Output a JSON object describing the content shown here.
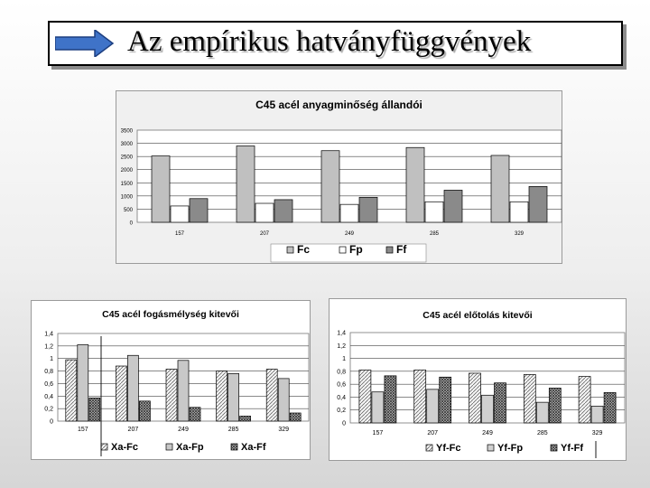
{
  "slide": {
    "title": "Az empírikus hatványfüggvények"
  },
  "chart_data": [
    {
      "type": "bar",
      "title": "C45 acél anyagminőség állandói",
      "categories": [
        "157",
        "207",
        "249",
        "285",
        "329"
      ],
      "ylim": [
        0,
        3500
      ],
      "yticks": [
        "0",
        "500",
        "1000",
        "1500",
        "2000",
        "2500",
        "3000",
        "3500"
      ],
      "grid": true,
      "legend_position": "bottom",
      "series": [
        {
          "name": "Fc",
          "values": [
            2520,
            2900,
            2720,
            2840,
            2540
          ],
          "fill": "#c0c0c0"
        },
        {
          "name": "Fp",
          "values": [
            620,
            720,
            680,
            780,
            780
          ],
          "fill": "#ffffff"
        },
        {
          "name": "Ff",
          "values": [
            900,
            860,
            950,
            1220,
            1360
          ],
          "fill": "#8a8a8a"
        }
      ]
    },
    {
      "type": "bar",
      "title": "C45 acél fogásmélység kitevői",
      "categories": [
        "157",
        "207",
        "249",
        "285",
        "329"
      ],
      "ylim": [
        0,
        1.4
      ],
      "yticks": [
        "0",
        "0,2",
        "0,4",
        "0,6",
        "0,8",
        "1",
        "1,2",
        "1,4"
      ],
      "grid": true,
      "legend_position": "bottom",
      "series": [
        {
          "name": "Xa-Fc",
          "values": [
            0.98,
            0.88,
            0.83,
            0.8,
            0.83
          ],
          "fill": "#e0e0e0"
        },
        {
          "name": "Xa-Fp",
          "values": [
            1.22,
            1.05,
            0.97,
            0.76,
            0.68
          ],
          "fill": "#c8c8c8"
        },
        {
          "name": "Xa-Ff",
          "values": [
            0.37,
            0.32,
            0.22,
            0.08,
            0.13
          ],
          "fill": "#8a8a8a"
        }
      ]
    },
    {
      "type": "bar",
      "title": "C45 acél előtolás kitevői",
      "categories": [
        "157",
        "207",
        "249",
        "285",
        "329"
      ],
      "ylim": [
        0,
        1.4
      ],
      "yticks": [
        "0",
        "0,2",
        "0,4",
        "0,6",
        "0,8",
        "1",
        "1,2",
        "1,4"
      ],
      "grid": true,
      "legend_position": "bottom",
      "series": [
        {
          "name": "Yf-Fc",
          "values": [
            0.82,
            0.82,
            0.77,
            0.75,
            0.72
          ],
          "fill": "#e0e0e0"
        },
        {
          "name": "Yf-Fp",
          "values": [
            0.48,
            0.52,
            0.43,
            0.32,
            0.26
          ],
          "fill": "#d0d0d0"
        },
        {
          "name": "Yf-Ff",
          "values": [
            0.73,
            0.71,
            0.62,
            0.54,
            0.47
          ],
          "fill": "#8a8a8a"
        }
      ]
    }
  ]
}
